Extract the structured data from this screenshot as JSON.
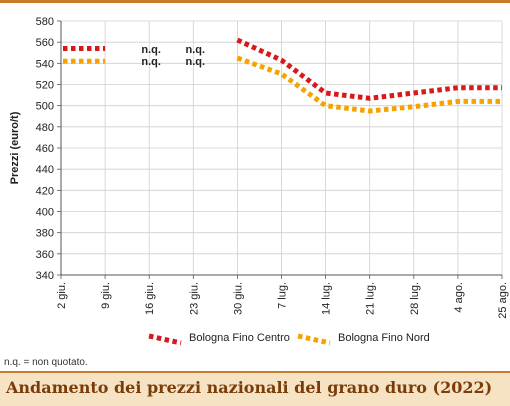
{
  "chart_data": {
    "type": "line",
    "title": "Andamento dei prezzi nazionali del grano duro (2022)",
    "ylabel": "Prezzi (euro/t)",
    "xlabel": "",
    "ylim": [
      340,
      580
    ],
    "yticks": [
      340,
      360,
      380,
      400,
      420,
      440,
      460,
      480,
      500,
      520,
      540,
      560,
      580
    ],
    "categories": [
      "2 giu.",
      "9 giu.",
      "16 giu.",
      "23 giu.",
      "30 giu.",
      "7 lug.",
      "14 lug.",
      "21 lug.",
      "28 lug.",
      "4 ago.",
      "25 ago."
    ],
    "grid": true,
    "legend_position": "bottom",
    "series": [
      {
        "name": "Bologna Fino Centro",
        "color": "#d7191c",
        "values": [
          554,
          554,
          null,
          null,
          562,
          543,
          512,
          507,
          512,
          517,
          517
        ]
      },
      {
        "name": "Bologna Fino Nord",
        "color": "#f5a300",
        "values": [
          542,
          542,
          null,
          null,
          545,
          530,
          500,
          495,
          499,
          504,
          504
        ]
      }
    ],
    "annotations": [
      {
        "text": "n.q.",
        "category": "16 giu."
      },
      {
        "text": "n.q.",
        "category": "23 giu."
      }
    ]
  },
  "footnote": "n.q. = non quotato.",
  "caption": "Andamento dei prezzi nazionali del grano duro (2022)"
}
